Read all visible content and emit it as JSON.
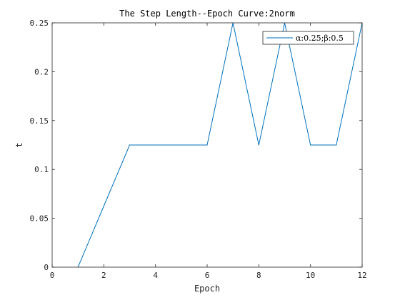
{
  "chart_data": {
    "type": "line",
    "title": "The Step Length--Epoch Curve:2norm",
    "xlabel": "Epoch",
    "ylabel": "t",
    "xlim": [
      0,
      12
    ],
    "ylim": [
      0,
      0.25
    ],
    "xticks": [
      0,
      2,
      4,
      6,
      8,
      10,
      12
    ],
    "xtick_labels": [
      "0",
      "2",
      "4",
      "6",
      "8",
      "10",
      "12"
    ],
    "yticks": [
      0,
      0.05,
      0.1,
      0.15,
      0.2,
      0.25
    ],
    "ytick_labels": [
      "0",
      "0.05",
      "0.1",
      "0.15",
      "0.2",
      "0.25"
    ],
    "grid": false,
    "legend_position": "top-right",
    "series": [
      {
        "name": "α:0.25;β:0.5",
        "color": "#0072bd",
        "x": [
          1,
          2,
          3,
          4,
          5,
          6,
          7,
          8,
          9,
          10,
          11,
          12
        ],
        "y": [
          0,
          0.0625,
          0.125,
          0.125,
          0.125,
          0.125,
          0.25,
          0.125,
          0.25,
          0.125,
          0.125,
          0.25
        ]
      }
    ]
  }
}
